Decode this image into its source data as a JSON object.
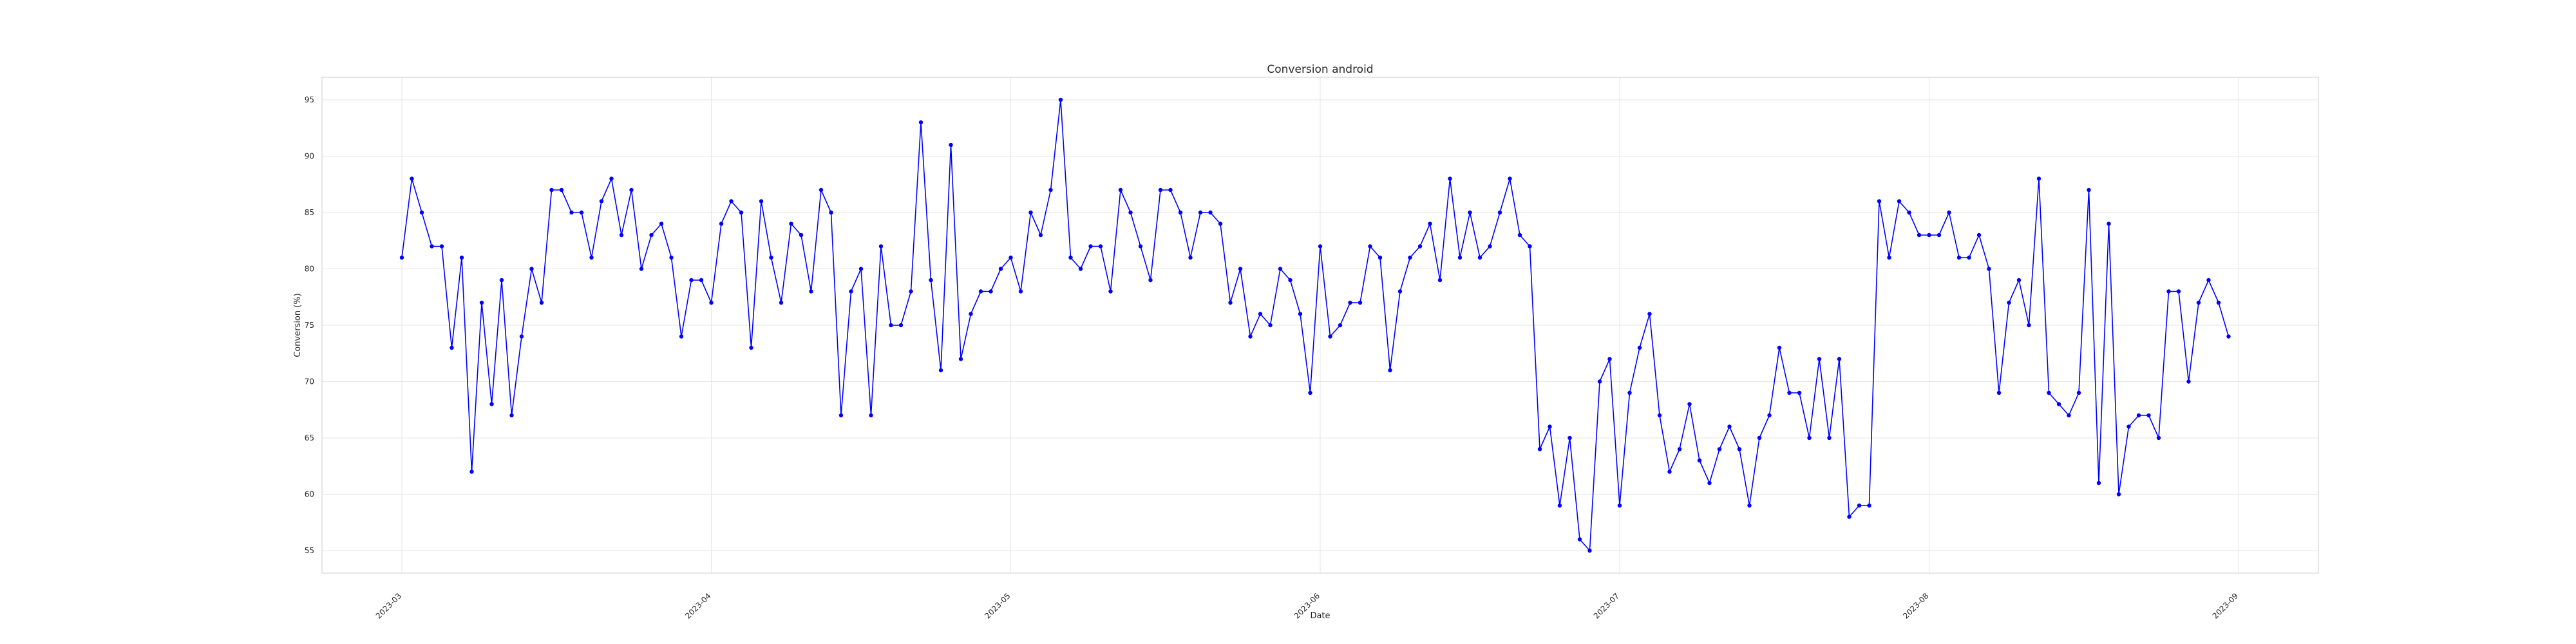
{
  "chart_data": {
    "type": "line",
    "title": "Conversion android",
    "xlabel": "Date",
    "ylabel": "Conversion (%)",
    "grid": true,
    "ylim": [
      53,
      97
    ],
    "xlim": [
      "2023-02-21",
      "2023-09-09"
    ],
    "yticks": [
      55,
      60,
      65,
      70,
      75,
      80,
      85,
      90,
      95
    ],
    "xticks": [
      "2023-03",
      "2023-04",
      "2023-05",
      "2023-06",
      "2023-07",
      "2023-08",
      "2023-09"
    ],
    "x_start": "2023-03-01",
    "x_step_days": 1,
    "colors": {
      "series": "#0000ff"
    },
    "series": [
      {
        "values": [
          81,
          88,
          85,
          82,
          82,
          73,
          81,
          62,
          77,
          68,
          79,
          67,
          74,
          80,
          77,
          87,
          87,
          85,
          85,
          81,
          86,
          88,
          83,
          87,
          80,
          83,
          84,
          81,
          74,
          79,
          79,
          77,
          84,
          86,
          85,
          73,
          86,
          81,
          77,
          84,
          83,
          78,
          87,
          85,
          67,
          78,
          80,
          67,
          82,
          75,
          75,
          78,
          93,
          79,
          71,
          91,
          72,
          76,
          78,
          78,
          80,
          81,
          78,
          85,
          83,
          87,
          95,
          81,
          80,
          82,
          82,
          78,
          87,
          85,
          82,
          79,
          87,
          87,
          85,
          81,
          85,
          85,
          84,
          77,
          80,
          74,
          76,
          75,
          80,
          79,
          76,
          69,
          82,
          74,
          75,
          77,
          77,
          82,
          81,
          71,
          78,
          81,
          82,
          84,
          79,
          88,
          81,
          85,
          81,
          82,
          85,
          88,
          83,
          82,
          64,
          66,
          59,
          65,
          56,
          55,
          70,
          72,
          59,
          69,
          73,
          76,
          67,
          62,
          64,
          68,
          63,
          61,
          64,
          66,
          64,
          59,
          65,
          67,
          73,
          69,
          69,
          65,
          72,
          65,
          72,
          58,
          59,
          59,
          86,
          81,
          86,
          85,
          83,
          83,
          83,
          85,
          81,
          81,
          83,
          80,
          69,
          77,
          79,
          75,
          88,
          69,
          68,
          67,
          69,
          87,
          61,
          84,
          60,
          66,
          67,
          67,
          65,
          78,
          78,
          70,
          77,
          79,
          77,
          74
        ]
      }
    ]
  }
}
